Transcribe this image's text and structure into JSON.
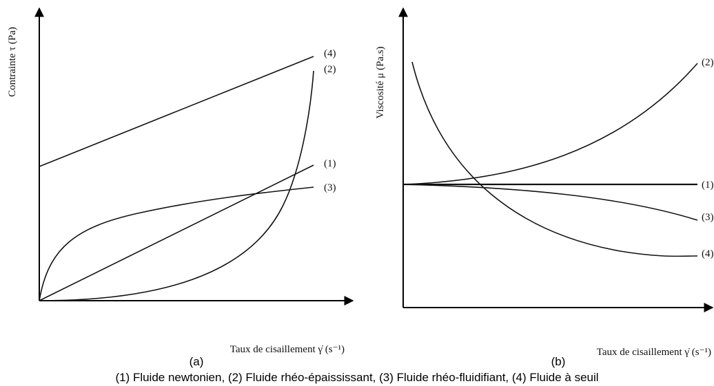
{
  "panel_a": {
    "y_label": "Contrainte τ (Pa)",
    "x_label": "Taux de cisaillement γ̇ (s⁻¹)",
    "curve_labels": [
      "(4)",
      "(2)",
      "(1)",
      "(3)"
    ],
    "caption": "(a)"
  },
  "panel_b": {
    "y_label": "Viscosité μ (Pa.s)",
    "x_label": "Taux de cisaillement γ̇ (s⁻¹)",
    "curve_labels": [
      "(2)",
      "(1)",
      "(3)",
      "(4)"
    ],
    "caption": "(b)"
  },
  "legend": "(1) Fluide newtonien, (2) Fluide rhéo-épaississant, (3) Fluide rhéo-fluidifiant, (4) Fluide à seuil"
}
